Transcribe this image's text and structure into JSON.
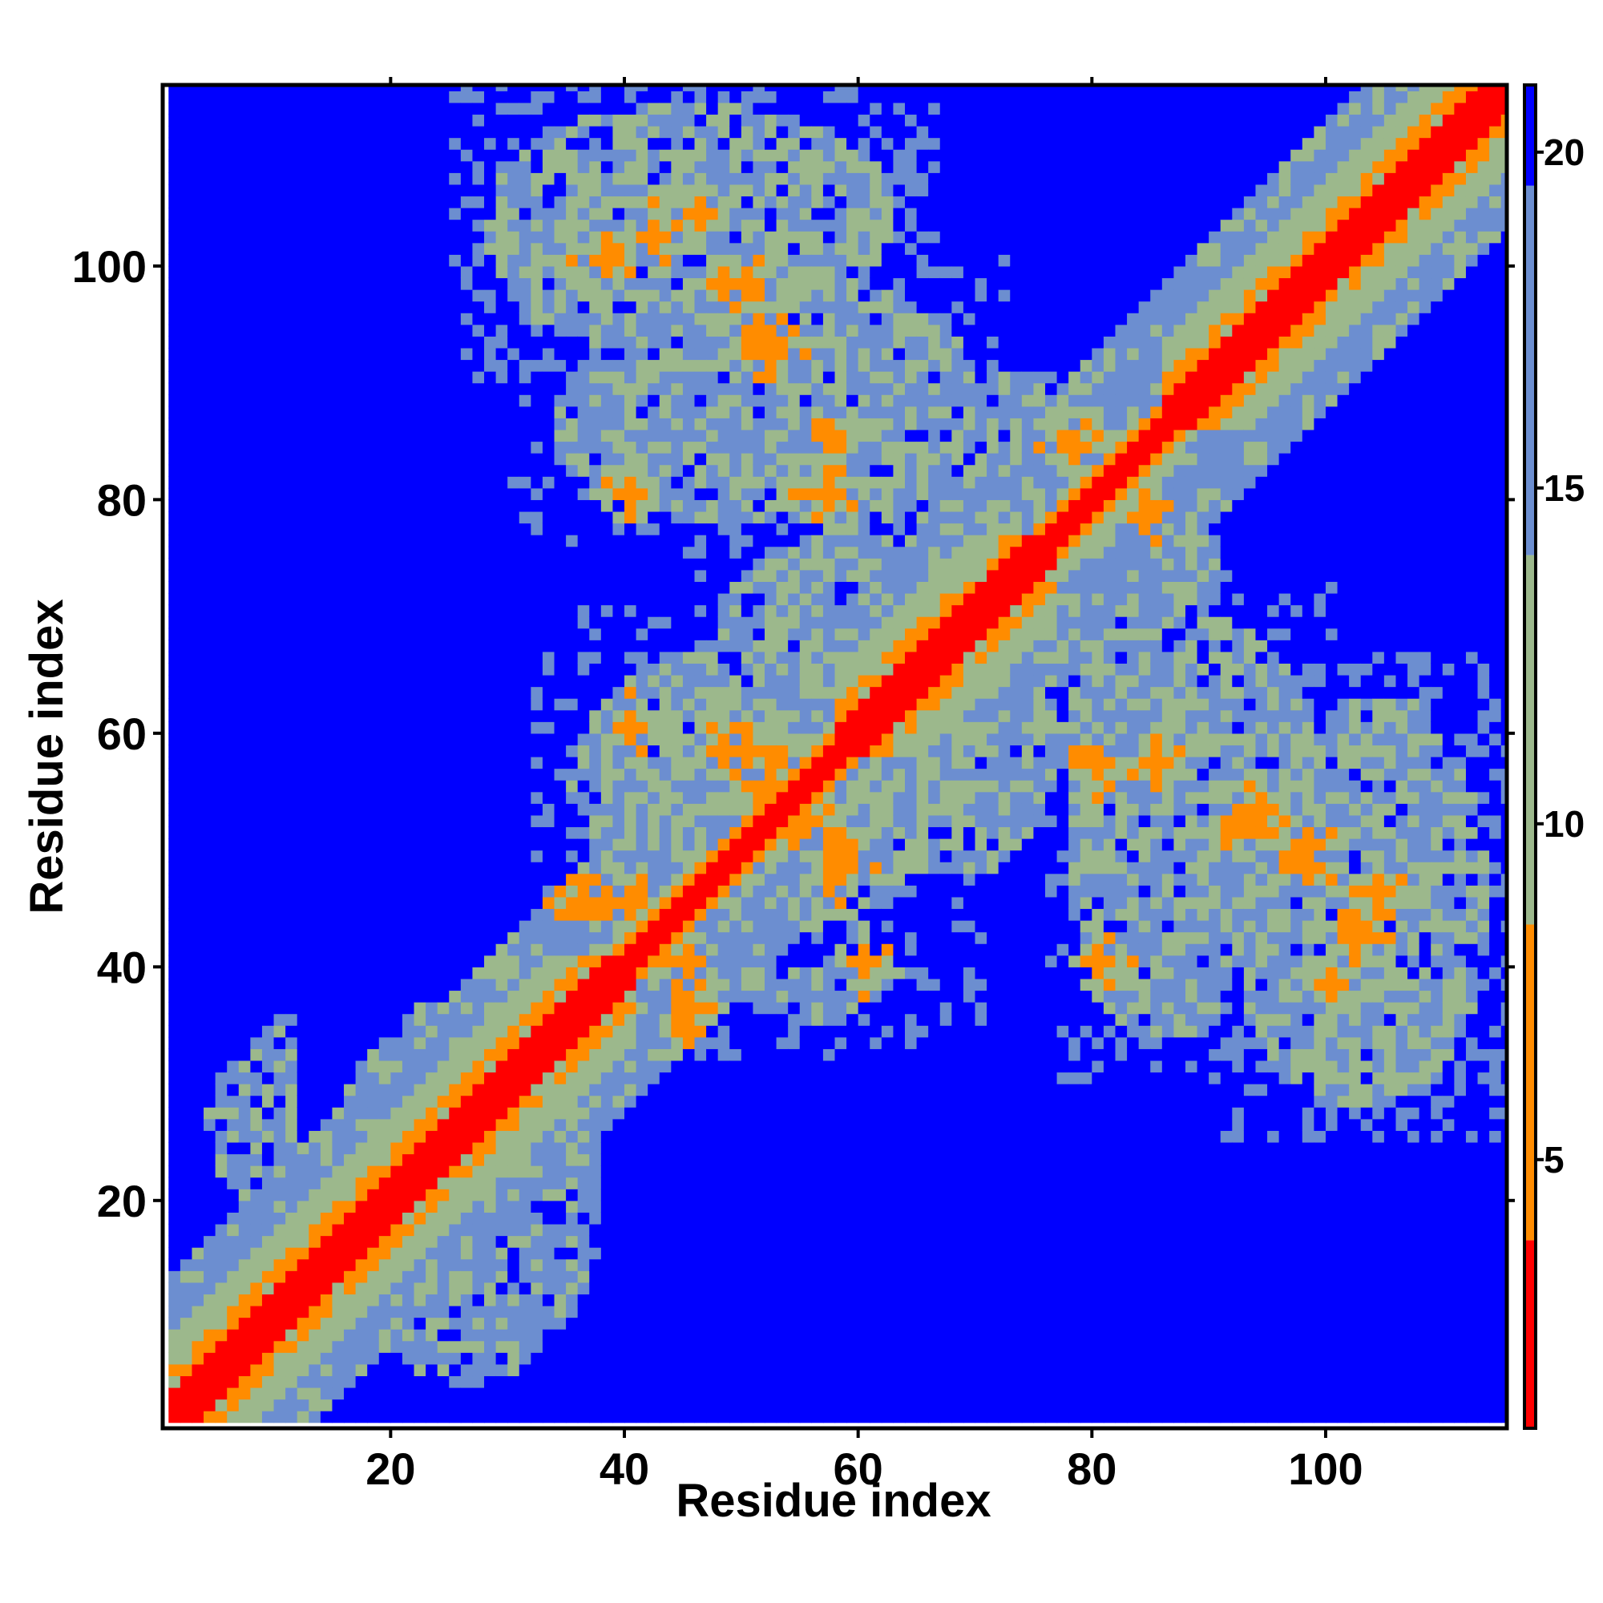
{
  "chart_data": {
    "type": "heatmap",
    "title": "",
    "xlabel": "Residue index",
    "ylabel": "Residue index",
    "xlim": [
      1,
      115
    ],
    "ylim": [
      1,
      115
    ],
    "x_ticks": [
      20,
      40,
      60,
      80,
      100
    ],
    "y_ticks": [
      20,
      40,
      60,
      80,
      100
    ],
    "x_tick_labels": [
      "20",
      "40",
      "60",
      "80",
      "100"
    ],
    "y_tick_labels": [
      "20",
      "40",
      "60",
      "80",
      "100"
    ],
    "grid": false,
    "legend": "colorbar-right",
    "colorbar": {
      "range": [
        1,
        21
      ],
      "ticks": [
        5,
        10,
        15,
        20
      ],
      "tick_labels": [
        "5",
        "10",
        "15",
        "20"
      ],
      "colors": [
        {
          "from": 1,
          "to": 3.8,
          "color": "#ff0000"
        },
        {
          "from": 3.8,
          "to": 8.5,
          "color": "#ff8c00"
        },
        {
          "from": 8.5,
          "to": 14.0,
          "color": "#9cb88c"
        },
        {
          "from": 14.0,
          "to": 19.5,
          "color": "#6c8ed0"
        },
        {
          "from": 19.5,
          "to": 21,
          "color": "#0000ff"
        }
      ]
    },
    "structure": {
      "diagonal": {
        "from": 1,
        "to": 115,
        "value": 0
      },
      "helix_bands": [
        {
          "start": 1,
          "end": 40,
          "band_value_1": 6.5,
          "band_value_2": 9.5,
          "width": 3
        },
        {
          "start": 58,
          "end": 76,
          "band_value_1": 6.0,
          "band_value_2": 9.5,
          "width": 3
        },
        {
          "start": 86,
          "end": 115,
          "band_value_1": 6.0,
          "band_value_2": 9.5,
          "width": 3
        }
      ],
      "contact_regions": [
        {
          "x_range": [
            25,
            66
          ],
          "y_range": [
            93,
            115
          ],
          "value": 14
        },
        {
          "x_range": [
            30,
            70
          ],
          "y_range": [
            76,
            95
          ],
          "value": 14.5
        },
        {
          "x_range": [
            32,
            70
          ],
          "y_range": [
            40,
            70
          ],
          "value": 14.5
        },
        {
          "x_range": [
            58,
            78
          ],
          "y_range": [
            45,
            72
          ],
          "value": 15
        },
        {
          "x_range": [
            62,
            85
          ],
          "y_range": [
            72,
            92
          ],
          "value": 15
        },
        {
          "x_range": [
            75,
            100
          ],
          "y_range": [
            45,
            72
          ],
          "value": 14.5
        },
        {
          "x_range": [
            90,
            115
          ],
          "y_range": [
            25,
            60
          ],
          "value": 14
        },
        {
          "x_range": [
            12,
            40
          ],
          "y_range": [
            1,
            40
          ],
          "value": 16
        }
      ],
      "contact_hotspots": [
        {
          "x": 52,
          "y": 93,
          "value": 6
        },
        {
          "x": 57,
          "y": 85,
          "value": 7
        },
        {
          "x": 80,
          "y": 80,
          "value": 7
        },
        {
          "x": 84,
          "y": 78,
          "value": 6.5
        },
        {
          "x": 40,
          "y": 80,
          "value": 7
        },
        {
          "x": 48,
          "y": 58,
          "value": 6.5
        },
        {
          "x": 52,
          "y": 55,
          "value": 6
        },
        {
          "x": 58,
          "y": 50,
          "value": 7
        },
        {
          "x": 45,
          "y": 40,
          "value": 7
        },
        {
          "x": 36,
          "y": 45,
          "value": 6.5
        },
        {
          "x": 60,
          "y": 40,
          "value": 7
        },
        {
          "x": 80,
          "y": 57,
          "value": 6.5
        },
        {
          "x": 92,
          "y": 52,
          "value": 7
        },
        {
          "x": 98,
          "y": 50,
          "value": 7
        },
        {
          "x": 80,
          "y": 40,
          "value": 7
        },
        {
          "x": 100,
          "y": 38,
          "value": 7
        },
        {
          "x": 104,
          "y": 46,
          "value": 7
        },
        {
          "x": 42,
          "y": 102,
          "value": 7
        },
        {
          "x": 48,
          "y": 98,
          "value": 7
        }
      ]
    }
  }
}
